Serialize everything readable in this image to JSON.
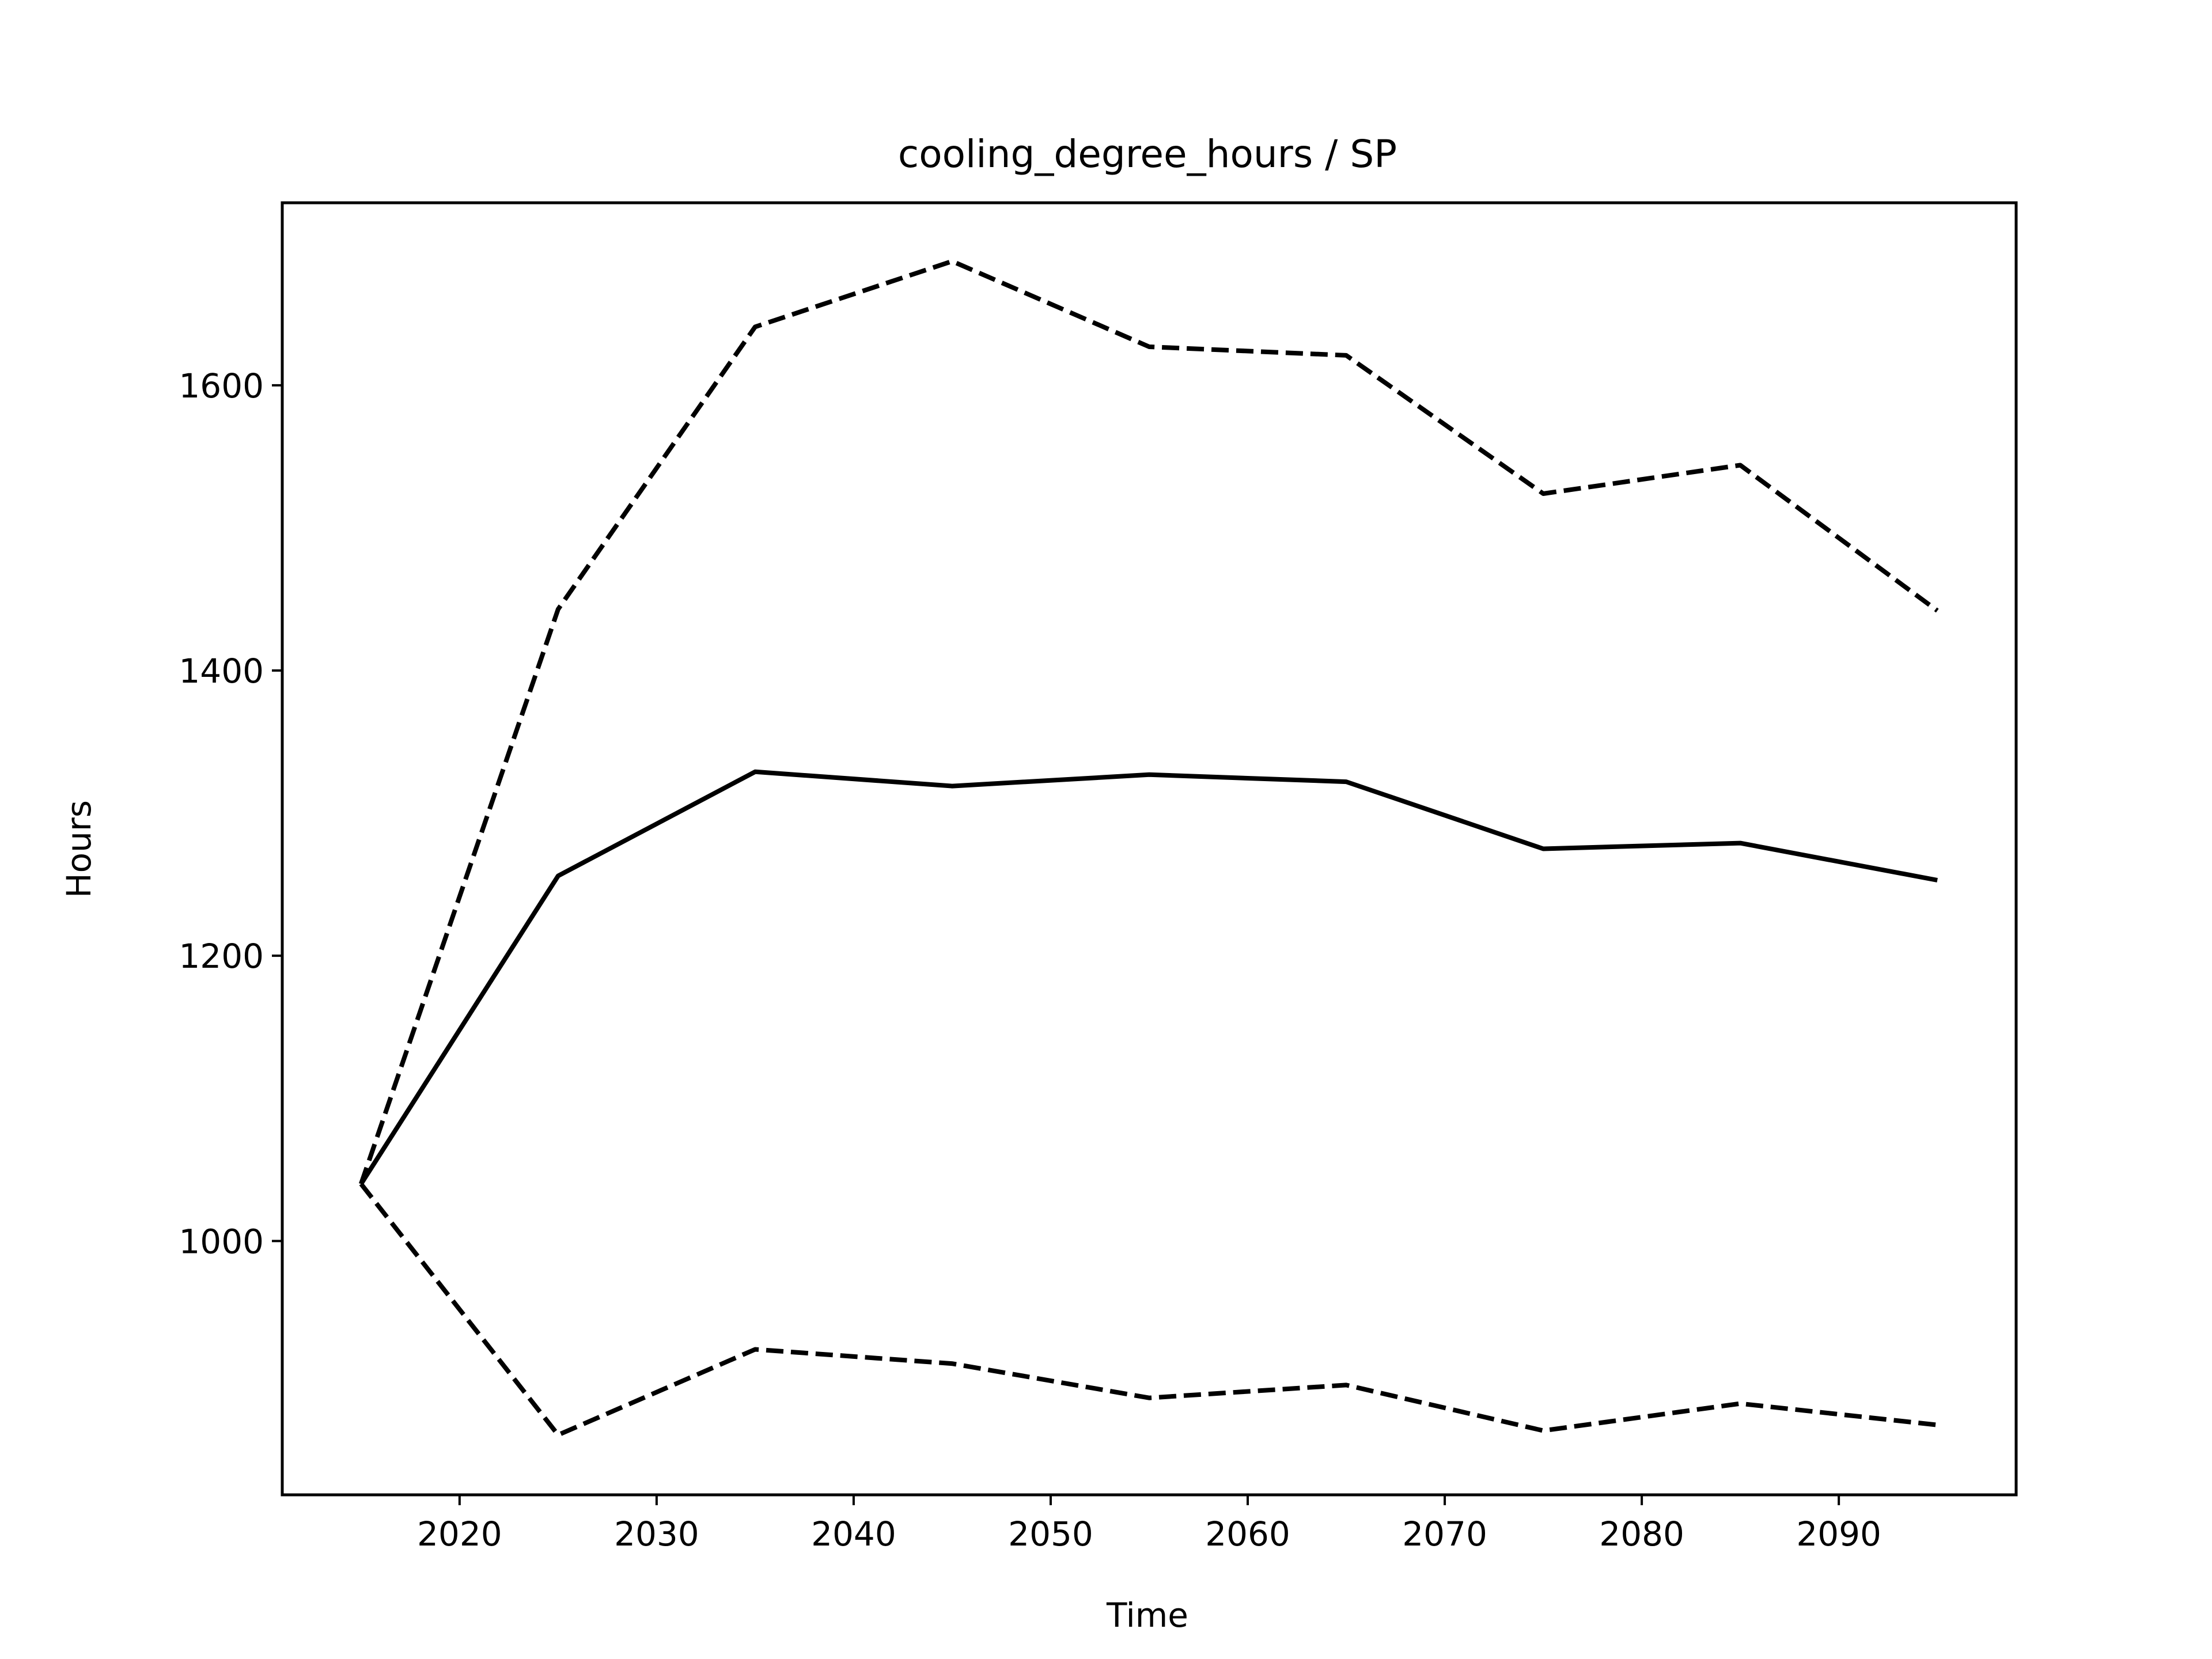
{
  "chart_data": {
    "type": "line",
    "title": "cooling_degree_hours / SP",
    "xlabel": "Time",
    "ylabel": "Hours",
    "x": [
      2015,
      2025,
      2035,
      2045,
      2055,
      2065,
      2075,
      2085,
      2095
    ],
    "xlim": [
      2011,
      2099
    ],
    "ylim": [
      822,
      1728
    ],
    "xticks": [
      2020,
      2030,
      2040,
      2050,
      2060,
      2070,
      2080,
      2090
    ],
    "yticks": [
      1000,
      1200,
      1400,
      1600
    ],
    "grid": false,
    "series": [
      {
        "style": "dashed",
        "color": "#000000",
        "values": [
          1040,
          1443,
          1641,
          1687,
          1627,
          1621,
          1524,
          1544,
          1442
        ]
      },
      {
        "style": "solid",
        "color": "#000000",
        "values": [
          1040,
          1256,
          1329,
          1319,
          1327,
          1322,
          1275,
          1279,
          1253
        ]
      },
      {
        "style": "dashed",
        "color": "#000000",
        "values": [
          1040,
          864,
          924,
          914,
          890,
          899,
          867,
          886,
          871
        ]
      }
    ]
  }
}
